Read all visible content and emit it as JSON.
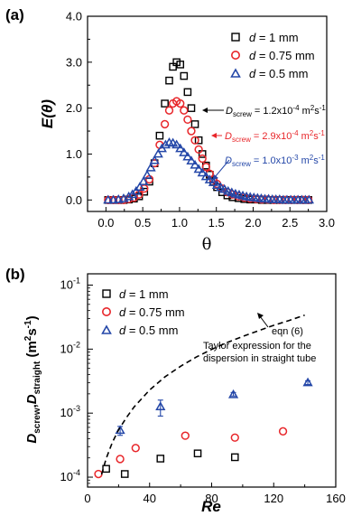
{
  "chart_data": [
    {
      "panel": "(a)",
      "type": "scatter",
      "xlabel": "θ",
      "ylabel": "E(θ)",
      "xlim": [
        -0.25,
        3.0
      ],
      "ylim": [
        -0.25,
        4.0
      ],
      "xticks": [
        "0.0",
        "0.5",
        "1.0",
        "1.5",
        "2.0",
        "2.5",
        "3.0"
      ],
      "yticks": [
        "0.0",
        "1.0",
        "2.0",
        "3.0",
        "4.0"
      ],
      "legend_position": "top-right",
      "series": [
        {
          "name": "d = 1 mm",
          "marker": "square",
          "color": "#000000",
          "annotation": "Dscrew = 1.2x10-4 m2s-1",
          "x": [
            0.03,
            0.1,
            0.17,
            0.24,
            0.31,
            0.38,
            0.45,
            0.52,
            0.59,
            0.66,
            0.73,
            0.8,
            0.86,
            0.91,
            0.96,
            1.01,
            1.06,
            1.11,
            1.16,
            1.21,
            1.26,
            1.31,
            1.36,
            1.41,
            1.46,
            1.51,
            1.58,
            1.65,
            1.72,
            1.8,
            1.88,
            1.96,
            2.04,
            2.12,
            2.2,
            2.28,
            2.36,
            2.44,
            2.52,
            2.6,
            2.68,
            2.75
          ],
          "y": [
            0.0,
            0.0,
            0.0,
            0.0,
            0.01,
            0.03,
            0.08,
            0.18,
            0.4,
            0.8,
            1.4,
            2.1,
            2.6,
            2.9,
            3.0,
            2.95,
            2.7,
            2.35,
            2.0,
            1.65,
            1.3,
            1.0,
            0.75,
            0.55,
            0.4,
            0.28,
            0.17,
            0.1,
            0.06,
            0.04,
            0.02,
            0.01,
            0.01,
            0.0,
            0.0,
            0.0,
            0.0,
            0.0,
            0.0,
            0.0,
            0.0,
            0.0
          ]
        },
        {
          "name": "d = 0.75 mm",
          "marker": "circle",
          "color": "#e8262a",
          "annotation": "Dscrew = 2.9x10-4 m2s-1",
          "x": [
            0.03,
            0.1,
            0.17,
            0.24,
            0.31,
            0.38,
            0.45,
            0.52,
            0.59,
            0.66,
            0.73,
            0.8,
            0.86,
            0.91,
            0.96,
            1.01,
            1.06,
            1.11,
            1.16,
            1.21,
            1.26,
            1.31,
            1.36,
            1.41,
            1.46,
            1.51,
            1.58,
            1.65,
            1.72,
            1.8,
            1.88,
            1.96,
            2.04,
            2.12,
            2.2,
            2.28,
            2.36,
            2.44,
            2.52,
            2.6,
            2.68,
            2.75
          ],
          "y": [
            0.0,
            0.0,
            0.0,
            0.0,
            0.02,
            0.05,
            0.12,
            0.25,
            0.45,
            0.8,
            1.2,
            1.65,
            1.95,
            2.1,
            2.15,
            2.1,
            1.95,
            1.75,
            1.5,
            1.3,
            1.1,
            0.9,
            0.72,
            0.57,
            0.45,
            0.35,
            0.25,
            0.17,
            0.12,
            0.08,
            0.05,
            0.03,
            0.02,
            0.01,
            0.01,
            0.0,
            0.0,
            0.0,
            0.0,
            0.0,
            0.0,
            0.0
          ]
        },
        {
          "name": "d = 0.5 mm",
          "marker": "triangle",
          "color": "#2447a8",
          "annotation": "Dscrew = 1.0x10-3 m2s-1",
          "x": [
            0.03,
            0.1,
            0.17,
            0.24,
            0.31,
            0.36,
            0.41,
            0.46,
            0.51,
            0.56,
            0.61,
            0.66,
            0.71,
            0.76,
            0.81,
            0.86,
            0.91,
            0.96,
            1.01,
            1.06,
            1.11,
            1.16,
            1.21,
            1.26,
            1.31,
            1.36,
            1.41,
            1.46,
            1.51,
            1.56,
            1.61,
            1.66,
            1.71,
            1.76,
            1.81,
            1.86,
            1.91,
            1.96,
            2.01,
            2.06,
            2.11,
            2.16,
            2.21,
            2.26,
            2.31,
            2.36,
            2.41,
            2.46,
            2.51,
            2.56,
            2.61,
            2.66,
            2.71,
            2.76
          ],
          "y": [
            0.0,
            0.0,
            0.01,
            0.03,
            0.07,
            0.12,
            0.19,
            0.28,
            0.4,
            0.54,
            0.7,
            0.86,
            1.0,
            1.12,
            1.2,
            1.25,
            1.24,
            1.2,
            1.12,
            1.03,
            0.94,
            0.85,
            0.76,
            0.67,
            0.59,
            0.51,
            0.44,
            0.38,
            0.32,
            0.27,
            0.23,
            0.19,
            0.16,
            0.13,
            0.11,
            0.09,
            0.07,
            0.06,
            0.05,
            0.04,
            0.03,
            0.02,
            0.02,
            0.01,
            0.01,
            0.01,
            0.0,
            0.0,
            0.0,
            0.0,
            0.0,
            0.0,
            0.0,
            0.0
          ]
        }
      ]
    },
    {
      "panel": "(b)",
      "type": "scatter",
      "xlabel": "Re",
      "ylabel": "Dscrew,Dstraight (m2s-1)",
      "xlim": [
        0,
        160
      ],
      "ylim": [
        7e-05,
        0.15
      ],
      "yscale": "log",
      "xticks": [
        "0",
        "40",
        "80",
        "120",
        "160"
      ],
      "legend_position": "top-left",
      "series": [
        {
          "name": "d = 1 mm",
          "marker": "square",
          "color": "#000000",
          "x": [
            12,
            24,
            47,
            71,
            95
          ],
          "y": [
            0.000135,
            0.000112,
            0.000195,
            0.000235,
            0.000205
          ]
        },
        {
          "name": "d = 0.75 mm",
          "marker": "circle",
          "color": "#e8262a",
          "x": [
            7,
            21,
            31,
            63,
            95,
            126
          ],
          "y": [
            0.000112,
            0.000192,
            0.000285,
            0.000445,
            0.000415,
            0.00052
          ]
        },
        {
          "name": "d = 0.5 mm",
          "marker": "triangle",
          "color": "#2447a8",
          "x": [
            21,
            47,
            94,
            142
          ],
          "y": [
            0.00054,
            0.00126,
            0.00195,
            0.003
          ],
          "err_low": [
            0.00045,
            0.0009,
            0.00185,
            0.0028
          ],
          "err_high": [
            0.00062,
            0.0016,
            0.0021,
            0.0032
          ]
        },
        {
          "name": "eqn (6)",
          "style": "dashed",
          "color": "#000000",
          "x": [
            9,
            12,
            16,
            20,
            25,
            30,
            40,
            50,
            60,
            70,
            80,
            90,
            100,
            110,
            120,
            130,
            140
          ],
          "y": [
            0.00011,
            0.000195,
            0.00035,
            0.00055,
            0.00085,
            0.00125,
            0.0023,
            0.0037,
            0.0054,
            0.0075,
            0.0099,
            0.0127,
            0.0158,
            0.0193,
            0.0235,
            0.028,
            0.034
          ]
        }
      ],
      "annotation_lines": [
        "eqn (6)",
        "Taylor expression for the",
        "dispersion in straight tube"
      ]
    }
  ]
}
